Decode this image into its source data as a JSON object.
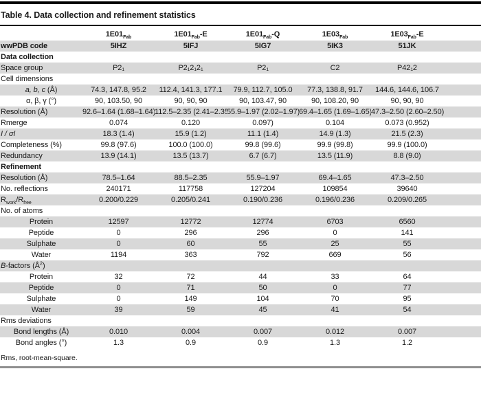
{
  "title": "Table 4. Data collection and refinement statistics",
  "footnote": "Rms, root-mean-square.",
  "colors": {
    "row_band": "#d8d8d8",
    "text": "#1a1a1a",
    "top_bar": "#000000",
    "head_rule": "#151515",
    "bottom_rule": "#8f8f8f"
  },
  "table": {
    "columns": [
      [
        {
          "t": "1E01"
        },
        {
          "t": "Fab",
          "s": "sub"
        }
      ],
      [
        {
          "t": "1E01"
        },
        {
          "t": "Fab",
          "s": "sub"
        },
        {
          "t": "-E"
        }
      ],
      [
        {
          "t": "1E01"
        },
        {
          "t": "Fab",
          "s": "sub"
        },
        {
          "t": "-Q"
        }
      ],
      [
        {
          "t": "1E03"
        },
        {
          "t": "Fab",
          "s": "sub"
        }
      ],
      [
        {
          "t": "1E03"
        },
        {
          "t": "Fab",
          "s": "sub"
        },
        {
          "t": "-E"
        }
      ]
    ],
    "rows": [
      {
        "label": [
          {
            "t": "wwPDB code"
          }
        ],
        "bold": true,
        "valuesBold": true,
        "values": [
          "5IHZ",
          "5IFJ",
          "5IG7",
          "5IK3",
          "51JK"
        ]
      },
      {
        "label": [
          {
            "t": "Data collection"
          }
        ],
        "bold": true,
        "values": [
          "",
          "",
          "",
          "",
          ""
        ]
      },
      {
        "label": [
          {
            "t": "Space group"
          }
        ],
        "values": [
          "P2₁",
          "P2₁2₁2₁",
          "P2₁",
          "C2",
          "P42₁2"
        ]
      },
      {
        "label": [
          {
            "t": "Cell dimensions"
          }
        ],
        "values": [
          "",
          "",
          "",
          "",
          ""
        ]
      },
      {
        "label": [
          {
            "t": "a, b, c",
            "i": true
          },
          {
            "t": " (Å)"
          }
        ],
        "indent": true,
        "values": [
          "74.3, 147.8, 95.2",
          "112.4, 141.3, 177.1",
          "79.9, 112.7, 105.0",
          "77.3, 138.8, 91.7",
          "144.6, 144.6, 106.7"
        ]
      },
      {
        "label": [
          {
            "t": "α, β, γ (°)"
          }
        ],
        "indent": true,
        "values": [
          "90, 103.50, 90",
          "90, 90, 90",
          "90, 103.47, 90",
          "90, 108.20, 90",
          "90, 90, 90"
        ]
      },
      {
        "label": [
          {
            "t": "Resolution (Å)"
          }
        ],
        "values": [
          "92.6–1.64 (1.68–1.64)",
          "112.5–2.35 (2.41–2.35)",
          "55.9–1.97 (2.02–1.97)",
          "69.4–1.65 (1.69–1.65)",
          "47.3–2.50 (2.60–2.50)"
        ]
      },
      {
        "label": [
          {
            "t": "Rmerge"
          }
        ],
        "values": [
          "0.074",
          "0.120",
          "0.097)",
          "0.104",
          "0.073 (0.952)"
        ]
      },
      {
        "label": [
          {
            "t": "I / σI",
            "i": true
          }
        ],
        "values": [
          "18.3 (1.4)",
          "15.9 (1.2)",
          "11.1 (1.4)",
          "14.9 (1.3)",
          "21.5 (2.3)"
        ]
      },
      {
        "label": [
          {
            "t": "Completeness (%)"
          }
        ],
        "values": [
          "99.8 (97.6)",
          "100.0 (100.0)",
          "99.8 (99.6)",
          "99.9 (99.8)",
          "99.9 (100.0)"
        ]
      },
      {
        "label": [
          {
            "t": "Redundancy"
          }
        ],
        "values": [
          "13.9 (14.1)",
          "13.5 (13.7)",
          "6.7 (6.7)",
          "13.5 (11.9)",
          "8.8 (9.0)"
        ]
      },
      {
        "label": [
          {
            "t": "Refinement"
          }
        ],
        "bold": true,
        "values": [
          "",
          "",
          "",
          "",
          ""
        ]
      },
      {
        "label": [
          {
            "t": "Resolution (Å)"
          }
        ],
        "values": [
          "78.5–1.64",
          "88.5–2.35",
          "55.9–1.97",
          "69.4–1.65",
          "47.3–2.50"
        ]
      },
      {
        "label": [
          {
            "t": "No. reflections"
          }
        ],
        "values": [
          "240171",
          "117758",
          "127204",
          "109854",
          "39640"
        ]
      },
      {
        "label": [
          {
            "t": "R"
          },
          {
            "t": "work",
            "s": "sub"
          },
          {
            "t": "/R"
          },
          {
            "t": "free",
            "s": "sub"
          }
        ],
        "values": [
          "0.200/0.229",
          "0.205/0.241",
          "0.190/0.236",
          "0.196/0.236",
          "0.209/0.265"
        ]
      },
      {
        "label": [
          {
            "t": "No. of atoms"
          }
        ],
        "values": [
          "",
          "",
          "",
          "",
          ""
        ]
      },
      {
        "label": [
          {
            "t": "Protein"
          }
        ],
        "indent": true,
        "values": [
          "12597",
          "12772",
          "12774",
          "6703",
          "6560"
        ]
      },
      {
        "label": [
          {
            "t": "Peptide"
          }
        ],
        "indent": true,
        "values": [
          "0",
          "296",
          "296",
          "0",
          "141"
        ]
      },
      {
        "label": [
          {
            "t": "Sulphate"
          }
        ],
        "indent": true,
        "values": [
          "0",
          "60",
          "55",
          "25",
          "55"
        ]
      },
      {
        "label": [
          {
            "t": "Water"
          }
        ],
        "indent": true,
        "values": [
          "1194",
          "363",
          "792",
          "669",
          "56"
        ]
      },
      {
        "label": [
          {
            "t": "B",
            "i": true
          },
          {
            "t": "-factors (Å"
          },
          {
            "t": "2",
            "s": "sup"
          },
          {
            "t": ")"
          }
        ],
        "values": [
          "",
          "",
          "",
          "",
          ""
        ]
      },
      {
        "label": [
          {
            "t": "Protein"
          }
        ],
        "indent": true,
        "values": [
          "32",
          "72",
          "44",
          "33",
          "64"
        ]
      },
      {
        "label": [
          {
            "t": "Peptide"
          }
        ],
        "indent": true,
        "values": [
          "0",
          "71",
          "50",
          "0",
          "77"
        ]
      },
      {
        "label": [
          {
            "t": "Sulphate"
          }
        ],
        "indent": true,
        "values": [
          "0",
          "149",
          "104",
          "70",
          "95"
        ]
      },
      {
        "label": [
          {
            "t": "Water"
          }
        ],
        "indent": true,
        "values": [
          "39",
          "59",
          "45",
          "41",
          "54"
        ]
      },
      {
        "label": [
          {
            "t": "Rms deviations"
          }
        ],
        "values": [
          "",
          "",
          "",
          "",
          ""
        ]
      },
      {
        "label": [
          {
            "t": "Bond lengths (Å)"
          }
        ],
        "indent": true,
        "values": [
          "0.010",
          "0.004",
          "0.007",
          "0.012",
          "0.007"
        ]
      },
      {
        "label": [
          {
            "t": "Bond angles (°)"
          }
        ],
        "indent": true,
        "values": [
          "1.3",
          "0.9",
          "0.9",
          "1.3",
          "1.2"
        ]
      }
    ]
  }
}
